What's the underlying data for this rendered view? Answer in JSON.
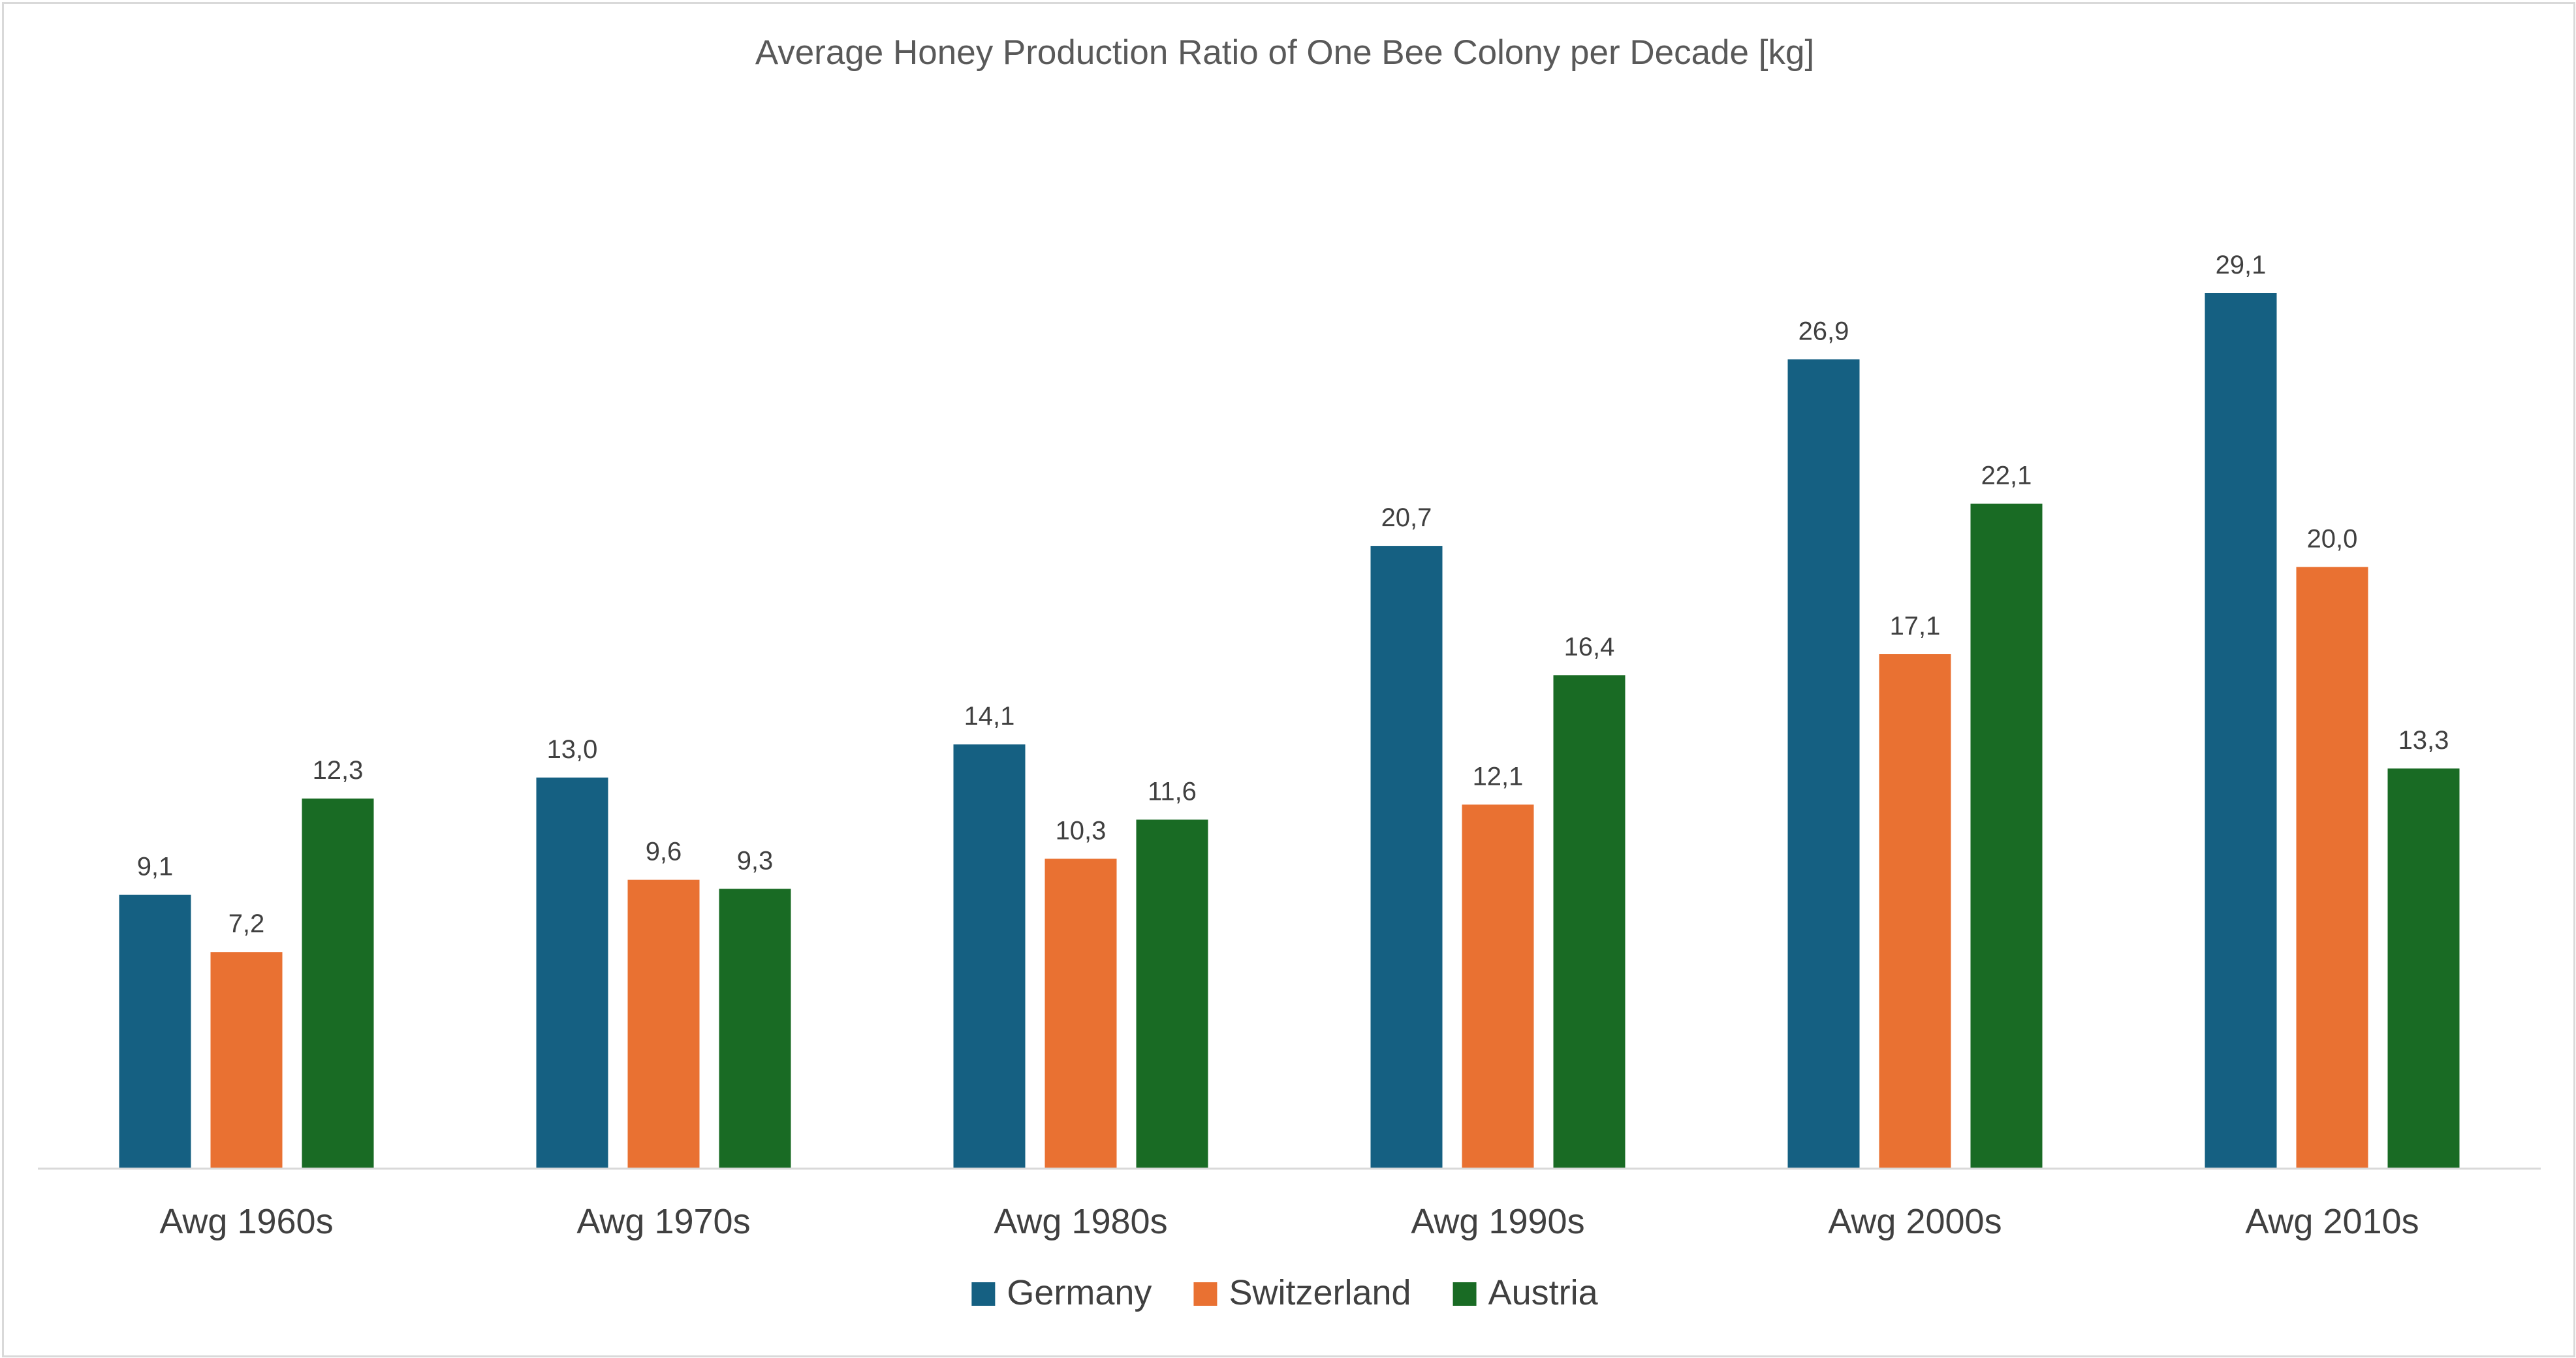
{
  "chart_data": {
    "type": "bar",
    "title": "Average Honey Production Ratio of One Bee Colony per Decade [kg]",
    "xlabel": "",
    "ylabel": "",
    "ylim": [
      0,
      32
    ],
    "grid": false,
    "legend_position": "bottom",
    "categories": [
      "Awg 1960s",
      "Awg 1970s",
      "Awg 1980s",
      "Awg 1990s",
      "Awg 2000s",
      "Awg 2010s"
    ],
    "series": [
      {
        "name": "Germany",
        "color": "#156082",
        "values": [
          9.1,
          13.0,
          14.1,
          20.7,
          26.9,
          29.1
        ],
        "labels": [
          "9,1",
          "13,0",
          "14,1",
          "20,7",
          "26,9",
          "29,1"
        ]
      },
      {
        "name": "Switzerland",
        "color": "#E97132",
        "values": [
          7.2,
          9.6,
          10.3,
          12.1,
          17.1,
          20.0
        ],
        "labels": [
          "7,2",
          "9,6",
          "10,3",
          "12,1",
          "17,1",
          "20,0"
        ]
      },
      {
        "name": "Austria",
        "color": "#196B24",
        "values": [
          12.3,
          9.3,
          11.6,
          16.4,
          22.1,
          13.3
        ],
        "labels": [
          "12,3",
          "9,3",
          "11,6",
          "16,4",
          "22,1",
          "13,3"
        ]
      }
    ]
  }
}
